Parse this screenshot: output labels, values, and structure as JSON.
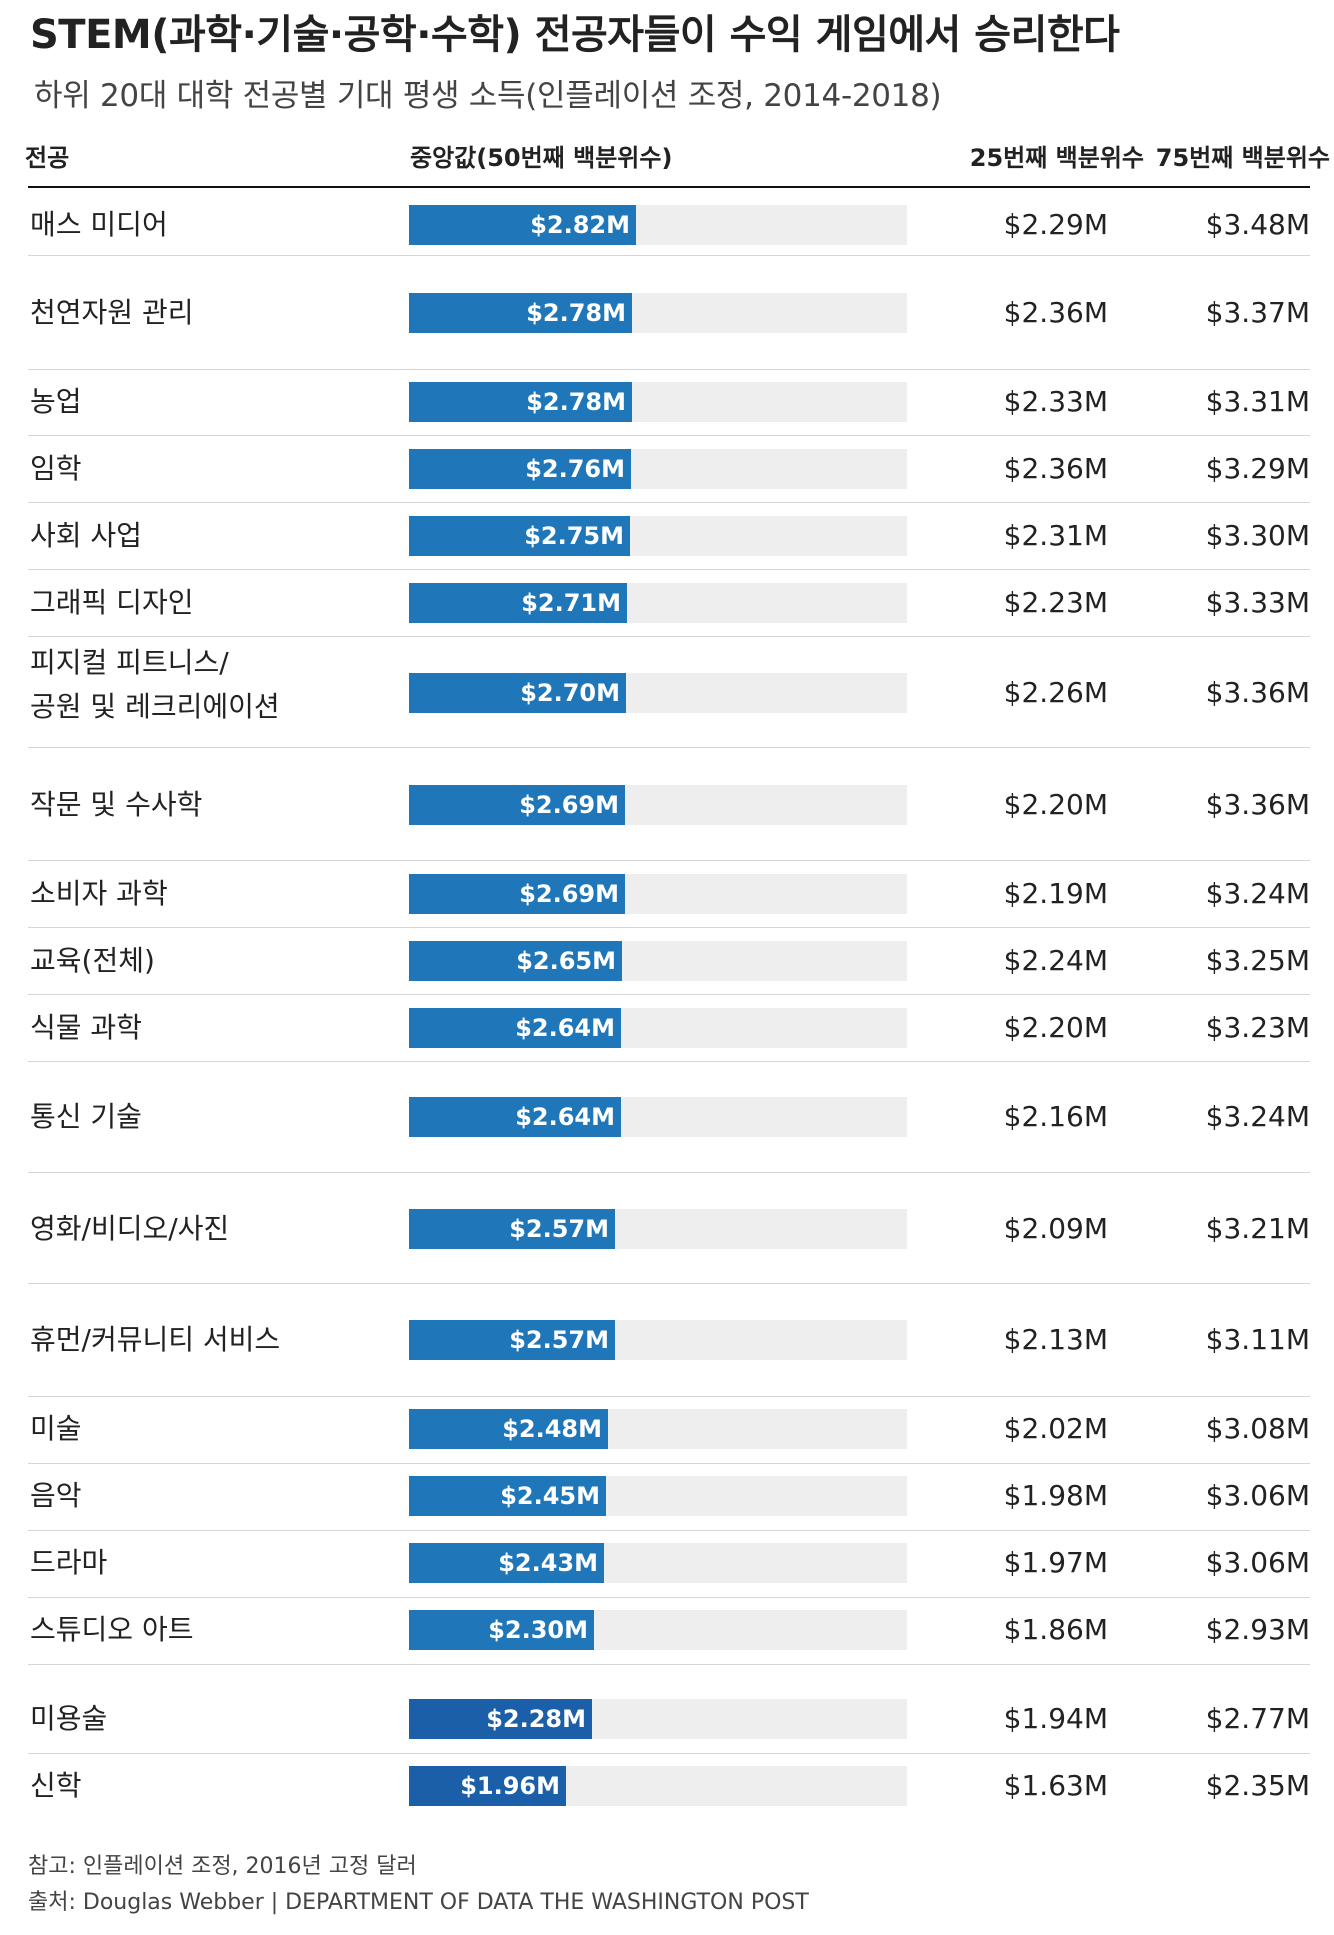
{
  "header": {
    "title": "STEM(과학·기술·공학·수학) 전공자들이 수익 게임에서 승리한다",
    "subtitle": "하위 20대 대학 전공별 기대 평생 소득(인플레이션 조정, 2014-2018)"
  },
  "columns": {
    "major": "전공",
    "median": "중앙값(50번째 백분위수)",
    "p25": "25번째 백분위수",
    "p75": "75번째 백분위수"
  },
  "colors": {
    "bar": "#1f77b9",
    "bar_dark": "#1a5fa8",
    "track": "#eeeeee"
  },
  "chart_data": {
    "type": "bar",
    "orientation": "horizontal",
    "unit": "$M",
    "xlim": [
      0,
      6.2
    ],
    "categories": [
      "매스 미디어",
      "천연자원 관리",
      "농업",
      "임학",
      "사회 사업",
      "그래픽 디자인",
      "피지컬 피트니스/\n공원 및 레크리에이션",
      "작문 및 수사학",
      "소비자 과학",
      "교육(전체)",
      "식물 과학",
      "통신 기술",
      "영화/비디오/사진",
      "휴먼/커뮤니티 서비스",
      "미술",
      "음악",
      "드라마",
      "스튜디오 아트",
      "미용술",
      "신학"
    ],
    "series": [
      {
        "name": "중앙값(50번째 백분위수)",
        "values": [
          2.82,
          2.78,
          2.78,
          2.76,
          2.75,
          2.71,
          2.7,
          2.69,
          2.69,
          2.65,
          2.64,
          2.64,
          2.57,
          2.57,
          2.48,
          2.45,
          2.43,
          2.3,
          2.28,
          1.96
        ]
      },
      {
        "name": "25번째 백분위수",
        "values": [
          2.29,
          2.36,
          2.33,
          2.36,
          2.31,
          2.23,
          2.26,
          2.2,
          2.19,
          2.24,
          2.2,
          2.16,
          2.09,
          2.13,
          2.02,
          1.98,
          1.97,
          1.86,
          1.94,
          1.63
        ]
      },
      {
        "name": "75번째 백분위수",
        "values": [
          3.48,
          3.37,
          3.31,
          3.29,
          3.3,
          3.33,
          3.36,
          3.36,
          3.24,
          3.25,
          3.23,
          3.24,
          3.21,
          3.11,
          3.08,
          3.06,
          3.06,
          2.93,
          2.77,
          2.35
        ]
      }
    ],
    "labels": {
      "median": [
        "$2.82M",
        "$2.78M",
        "$2.78M",
        "$2.76M",
        "$2.75M",
        "$2.71M",
        "$2.70M",
        "$2.69M",
        "$2.69M",
        "$2.65M",
        "$2.64M",
        "$2.64M",
        "$2.57M",
        "$2.57M",
        "$2.48M",
        "$2.45M",
        "$2.43M",
        "$2.30M",
        "$2.28M",
        "$1.96M"
      ],
      "p25": [
        "$2.29M",
        "$2.36M",
        "$2.33M",
        "$2.36M",
        "$2.31M",
        "$2.23M",
        "$2.26M",
        "$2.20M",
        "$2.19M",
        "$2.24M",
        "$2.20M",
        "$2.16M",
        "$2.09M",
        "$2.13M",
        "$2.02M",
        "$1.98M",
        "$1.97M",
        "$1.86M",
        "$1.94M",
        "$1.63M"
      ],
      "p75": [
        "$3.48M",
        "$3.37M",
        "$3.31M",
        "$3.29M",
        "$3.30M",
        "$3.33M",
        "$3.36M",
        "$3.36M",
        "$3.24M",
        "$3.25M",
        "$3.23M",
        "$3.24M",
        "$3.21M",
        "$3.11M",
        "$3.08M",
        "$3.06M",
        "$3.06M",
        "$2.93M",
        "$2.77M",
        "$2.35M"
      ]
    },
    "dark_bars": [
      "미용술",
      "신학"
    ]
  },
  "footer": {
    "note": "참고: 인플레이션 조정, 2016년 고정 달러",
    "source": "출처: Douglas Webber  | DEPARTMENT OF DATA THE WASHINGTON POST"
  }
}
